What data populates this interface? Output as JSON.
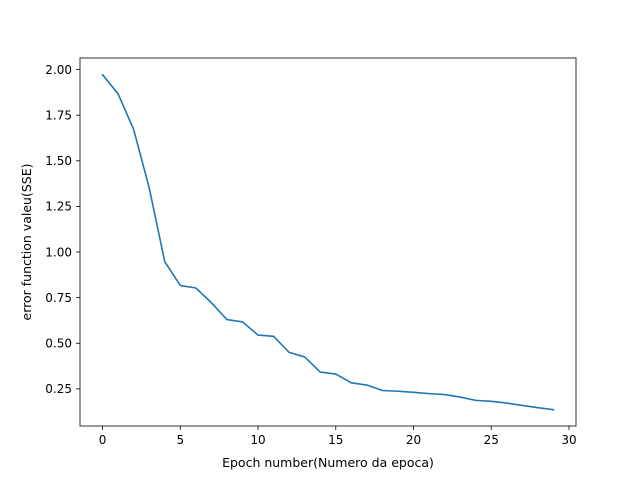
{
  "chart_data": {
    "type": "line",
    "title": "",
    "xlabel": "Epoch number(Numero da epoca)",
    "ylabel": "error function valeu(SSE)",
    "xlim": [
      -1.45,
      30.45
    ],
    "ylim": [
      0.0465,
      2.0635
    ],
    "x_ticks": [
      0,
      5,
      10,
      15,
      20,
      25,
      30
    ],
    "y_ticks": [
      0.25,
      0.5,
      0.75,
      1.0,
      1.25,
      1.5,
      1.75,
      2.0
    ],
    "x_tick_labels": [
      "0",
      "5",
      "10",
      "15",
      "20",
      "25",
      "30"
    ],
    "y_tick_labels": [
      "0.25",
      "0.50",
      "0.75",
      "1.00",
      "1.25",
      "1.50",
      "1.75",
      "2.00"
    ],
    "grid": false,
    "legend": "none",
    "series": [
      {
        "color": "#1f77b4",
        "x": [
          0,
          1,
          2,
          3,
          4,
          5,
          6,
          7,
          8,
          9,
          10,
          11,
          12,
          13,
          14,
          15,
          16,
          17,
          18,
          19,
          20,
          21,
          22,
          23,
          24,
          25,
          26,
          27,
          28,
          29
        ],
        "values": [
          1.972,
          1.867,
          1.672,
          1.352,
          0.947,
          0.817,
          0.803,
          0.722,
          0.63,
          0.617,
          0.545,
          0.538,
          0.45,
          0.425,
          0.342,
          0.331,
          0.283,
          0.271,
          0.241,
          0.237,
          0.231,
          0.224,
          0.219,
          0.205,
          0.187,
          0.182,
          0.172,
          0.159,
          0.147,
          0.136
        ]
      }
    ]
  }
}
